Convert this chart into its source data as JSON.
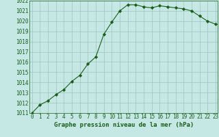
{
  "x": [
    0,
    1,
    2,
    3,
    4,
    5,
    6,
    7,
    8,
    9,
    10,
    11,
    12,
    13,
    14,
    15,
    16,
    17,
    18,
    19,
    20,
    21,
    22,
    23
  ],
  "y": [
    1011.0,
    1011.8,
    1012.2,
    1012.8,
    1013.3,
    1014.1,
    1014.7,
    1015.8,
    1016.5,
    1018.7,
    1019.9,
    1021.0,
    1021.6,
    1021.6,
    1021.4,
    1021.3,
    1021.5,
    1021.4,
    1021.3,
    1021.2,
    1021.0,
    1020.5,
    1020.0,
    1019.7
  ],
  "line_color": "#1a5c1a",
  "marker": "D",
  "marker_size": 2.2,
  "bg_color": "#c5e8e5",
  "grid_color": "#9dc4be",
  "xlabel": "Graphe pression niveau de la mer (hPa)",
  "xlabel_fontsize": 6.5,
  "tick_fontsize": 5.5,
  "ylim": [
    1011,
    1022
  ],
  "xlim": [
    -0.3,
    23.3
  ],
  "yticks": [
    1011,
    1012,
    1013,
    1014,
    1015,
    1016,
    1017,
    1018,
    1019,
    1020,
    1021,
    1022
  ],
  "xticks": [
    0,
    1,
    2,
    3,
    4,
    5,
    6,
    7,
    8,
    9,
    10,
    11,
    12,
    13,
    14,
    15,
    16,
    17,
    18,
    19,
    20,
    21,
    22,
    23
  ]
}
